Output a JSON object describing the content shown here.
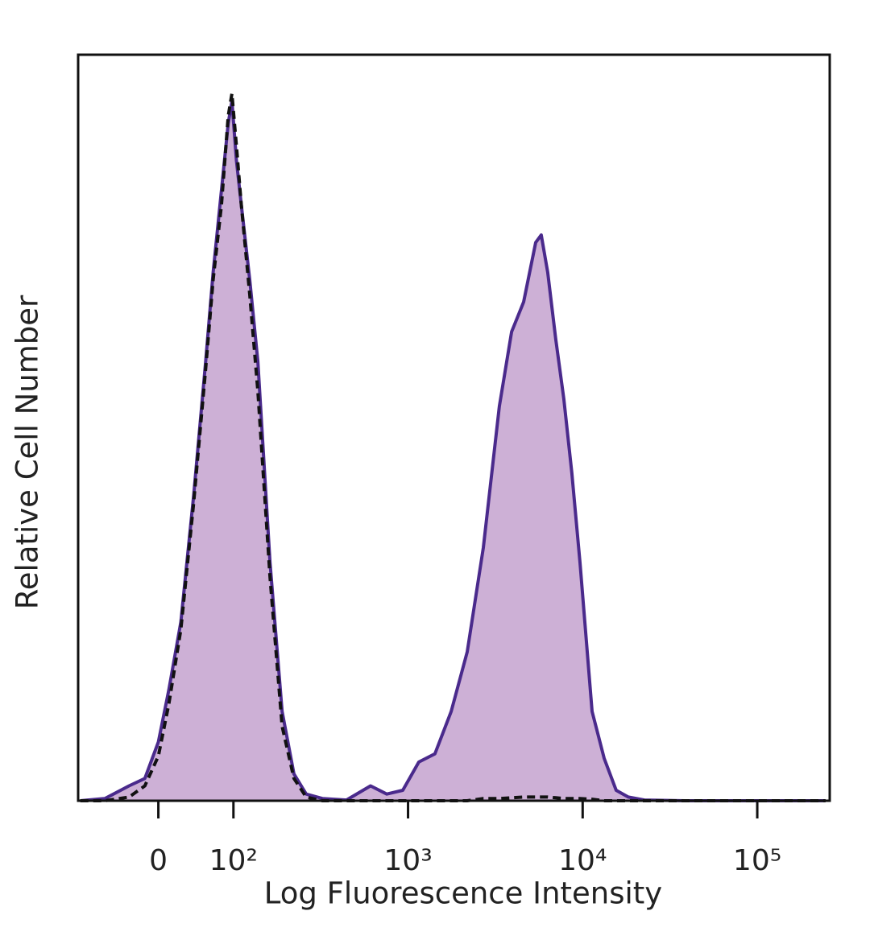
{
  "chart_data": {
    "type": "histogram-overlay",
    "x_label": "Log Fluorescence Intensity",
    "y_label": "Relative Cell Number",
    "xscale": "symlog",
    "linthresh": 100,
    "linscale": 0.43,
    "xlim": [
      -107,
      260000
    ],
    "ylim": [
      0,
      100
    ],
    "xticks": [
      0,
      {
        "value": 100,
        "label": "10²"
      },
      {
        "value": 1000,
        "label": "10³"
      },
      {
        "value": 10000,
        "label": "10⁴"
      },
      {
        "value": 100000,
        "label": "10⁵"
      }
    ],
    "x": [
      -104,
      -71,
      -39,
      -18,
      0,
      14,
      30,
      47,
      63,
      73,
      84,
      93,
      98,
      104,
      111,
      124,
      138,
      162,
      190,
      222,
      261,
      323,
      444,
      610,
      755,
      933,
      1153,
      1426,
      1766,
      2183,
      2698,
      3334,
      3917,
      4592,
      5383,
      5795,
      6310,
      7015,
      7798,
      8670,
      9661,
      11324,
      13274,
      15560,
      18240,
      22594,
      38370,
      65310,
      110917,
      188800,
      245900
    ],
    "series": [
      {
        "color": "#4a2a8c",
        "fill": "#cdb0d6",
        "line_style": "solid",
        "values": [
          0,
          0.3,
          2,
          3,
          7.9,
          14.9,
          24,
          41,
          59,
          71,
          82,
          91,
          94,
          86,
          80,
          70,
          59,
          32,
          12,
          3.6,
          0.9,
          0.3,
          0.1,
          2,
          0.9,
          1.4,
          5.2,
          6.3,
          12,
          20,
          34,
          53,
          63,
          67,
          75,
          76,
          71,
          62,
          54,
          44,
          32,
          12,
          5.7,
          1.4,
          0.5,
          0.1,
          0,
          0,
          0,
          0,
          0
        ]
      },
      {
        "color": "#111111",
        "fill": null,
        "line_style": "dashed",
        "values": [
          0,
          0,
          0.5,
          2,
          6,
          13,
          23,
          40,
          58,
          70,
          80,
          92,
          95,
          88,
          80,
          68,
          55,
          30,
          10,
          3,
          0.5,
          0,
          0,
          0,
          0,
          0,
          0,
          0,
          0,
          0,
          0.3,
          0.3,
          0.4,
          0.5,
          0.5,
          0.5,
          0.5,
          0.4,
          0.3,
          0.3,
          0.3,
          0.2,
          0,
          0,
          0,
          0,
          0,
          0,
          0,
          0,
          0
        ]
      }
    ]
  }
}
